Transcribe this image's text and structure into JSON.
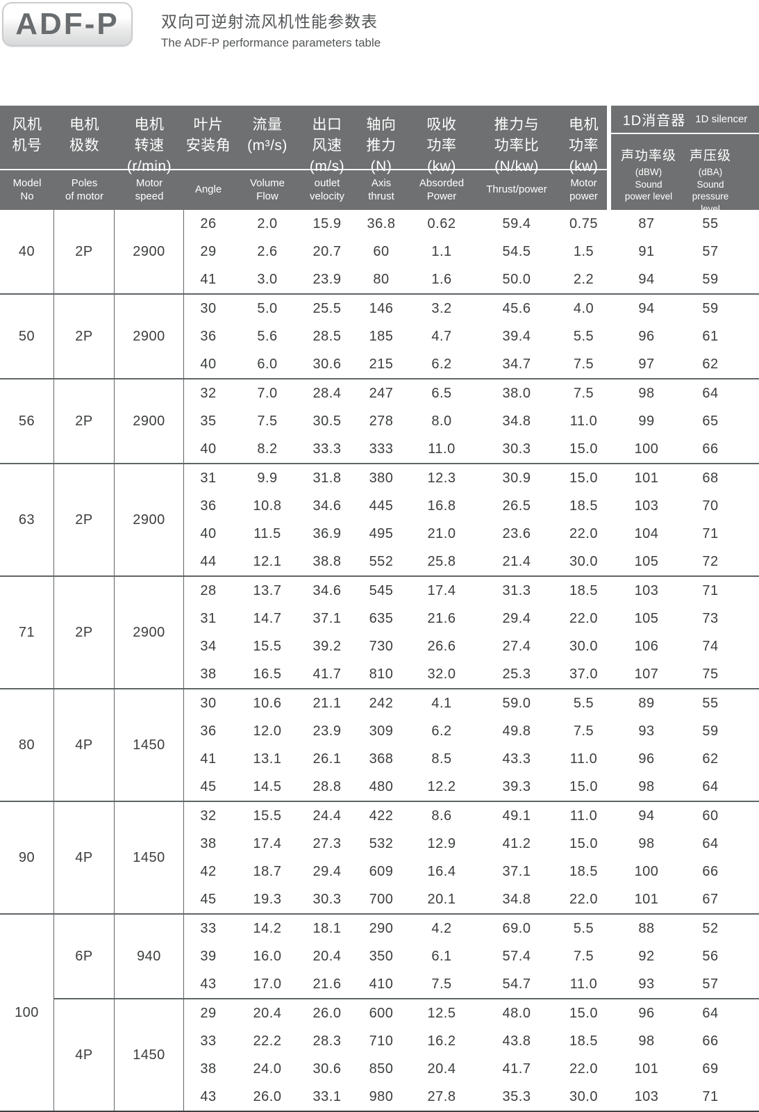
{
  "page": {
    "logo_text": "ADF-P",
    "title_zh": "双向可逆射流风机性能参数表",
    "title_en": "The ADF-P performance parameters table"
  },
  "table": {
    "header": {
      "columns": [
        {
          "zh": "风机\n机号",
          "en": "Model\nNo"
        },
        {
          "zh": "电机\n极数",
          "en": "Poles\nof motor"
        },
        {
          "zh": "电机\n转速\n(r/min)",
          "en": "Motor\nspeed"
        },
        {
          "zh": "叶片\n安装角",
          "en": "Angle"
        },
        {
          "zh": "流量\n(m³/s)",
          "en": "Volume\nFlow"
        },
        {
          "zh": "出口\n风速\n(m/s)",
          "en": "outlet\nvelocity"
        },
        {
          "zh": "轴向\n推力\n(N)",
          "en": "Axis\nthrust"
        },
        {
          "zh": "吸收\n功率\n(kw)",
          "en": "Absorded\nPower"
        },
        {
          "zh": "推力与\n功率比\n(N/kw)",
          "en": "Thrust/power"
        },
        {
          "zh": "电机\n功率\n(kw)",
          "en": "Motor\npower"
        }
      ],
      "silencer": {
        "title_zh": "1D消音器",
        "title_en": "1D silencer",
        "cols": [
          {
            "zh": "声功率级",
            "en": "(dBW)\nSound\npower level"
          },
          {
            "zh": "声压级",
            "en": "(dBA)\nSound\npressure level"
          }
        ]
      }
    },
    "colors": {
      "header_bg": "#6e7071",
      "header_text": "#ffffff",
      "body_text": "#3b3d3f",
      "grid_line": "#5f6467"
    },
    "groups": [
      {
        "model": "40",
        "subs": [
          {
            "poles": "2P",
            "speed": "2900",
            "rows": [
              [
                "26",
                "2.0",
                "15.9",
                "36.8",
                "0.62",
                "59.4",
                "0.75",
                "87",
                "55"
              ],
              [
                "29",
                "2.6",
                "20.7",
                "60",
                "1.1",
                "54.5",
                "1.5",
                "91",
                "57"
              ],
              [
                "41",
                "3.0",
                "23.9",
                "80",
                "1.6",
                "50.0",
                "2.2",
                "94",
                "59"
              ]
            ]
          }
        ]
      },
      {
        "model": "50",
        "subs": [
          {
            "poles": "2P",
            "speed": "2900",
            "rows": [
              [
                "30",
                "5.0",
                "25.5",
                "146",
                "3.2",
                "45.6",
                "4.0",
                "94",
                "59"
              ],
              [
                "36",
                "5.6",
                "28.5",
                "185",
                "4.7",
                "39.4",
                "5.5",
                "96",
                "61"
              ],
              [
                "40",
                "6.0",
                "30.6",
                "215",
                "6.2",
                "34.7",
                "7.5",
                "97",
                "62"
              ]
            ]
          }
        ]
      },
      {
        "model": "56",
        "subs": [
          {
            "poles": "2P",
            "speed": "2900",
            "rows": [
              [
                "32",
                "7.0",
                "28.4",
                "247",
                "6.5",
                "38.0",
                "7.5",
                "98",
                "64"
              ],
              [
                "35",
                "7.5",
                "30.5",
                "278",
                "8.0",
                "34.8",
                "11.0",
                "99",
                "65"
              ],
              [
                "40",
                "8.2",
                "33.3",
                "333",
                "11.0",
                "30.3",
                "15.0",
                "100",
                "66"
              ]
            ]
          }
        ]
      },
      {
        "model": "63",
        "subs": [
          {
            "poles": "2P",
            "speed": "2900",
            "rows": [
              [
                "31",
                "9.9",
                "31.8",
                "380",
                "12.3",
                "30.9",
                "15.0",
                "101",
                "68"
              ],
              [
                "36",
                "10.8",
                "34.6",
                "445",
                "16.8",
                "26.5",
                "18.5",
                "103",
                "70"
              ],
              [
                "40",
                "11.5",
                "36.9",
                "495",
                "21.0",
                "23.6",
                "22.0",
                "104",
                "71"
              ],
              [
                "44",
                "12.1",
                "38.8",
                "552",
                "25.8",
                "21.4",
                "30.0",
                "105",
                "72"
              ]
            ]
          }
        ]
      },
      {
        "model": "71",
        "subs": [
          {
            "poles": "2P",
            "speed": "2900",
            "rows": [
              [
                "28",
                "13.7",
                "34.6",
                "545",
                "17.4",
                "31.3",
                "18.5",
                "103",
                "71"
              ],
              [
                "31",
                "14.7",
                "37.1",
                "635",
                "21.6",
                "29.4",
                "22.0",
                "105",
                "73"
              ],
              [
                "34",
                "15.5",
                "39.2",
                "730",
                "26.6",
                "27.4",
                "30.0",
                "106",
                "74"
              ],
              [
                "38",
                "16.5",
                "41.7",
                "810",
                "32.0",
                "25.3",
                "37.0",
                "107",
                "75"
              ]
            ]
          }
        ]
      },
      {
        "model": "80",
        "subs": [
          {
            "poles": "4P",
            "speed": "1450",
            "rows": [
              [
                "30",
                "10.6",
                "21.1",
                "242",
                "4.1",
                "59.0",
                "5.5",
                "89",
                "55"
              ],
              [
                "36",
                "12.0",
                "23.9",
                "309",
                "6.2",
                "49.8",
                "7.5",
                "93",
                "59"
              ],
              [
                "41",
                "13.1",
                "26.1",
                "368",
                "8.5",
                "43.3",
                "11.0",
                "96",
                "62"
              ],
              [
                "45",
                "14.5",
                "28.8",
                "480",
                "12.2",
                "39.3",
                "15.0",
                "98",
                "64"
              ]
            ]
          }
        ]
      },
      {
        "model": "90",
        "subs": [
          {
            "poles": "4P",
            "speed": "1450",
            "rows": [
              [
                "32",
                "15.5",
                "24.4",
                "422",
                "8.6",
                "49.1",
                "11.0",
                "94",
                "60"
              ],
              [
                "38",
                "17.4",
                "27.3",
                "532",
                "12.9",
                "41.2",
                "15.0",
                "98",
                "64"
              ],
              [
                "42",
                "18.7",
                "29.4",
                "609",
                "16.4",
                "37.1",
                "18.5",
                "100",
                "66"
              ],
              [
                "45",
                "19.3",
                "30.3",
                "700",
                "20.1",
                "34.8",
                "22.0",
                "101",
                "67"
              ]
            ]
          }
        ]
      },
      {
        "model": "100",
        "subs": [
          {
            "poles": "6P",
            "speed": "940",
            "rows": [
              [
                "33",
                "14.2",
                "18.1",
                "290",
                "4.2",
                "69.0",
                "5.5",
                "88",
                "52"
              ],
              [
                "39",
                "16.0",
                "20.4",
                "350",
                "6.1",
                "57.4",
                "7.5",
                "92",
                "56"
              ],
              [
                "43",
                "17.0",
                "21.6",
                "410",
                "7.5",
                "54.7",
                "11.0",
                "93",
                "57"
              ]
            ]
          },
          {
            "poles": "4P",
            "speed": "1450",
            "rows": [
              [
                "29",
                "20.4",
                "26.0",
                "600",
                "12.5",
                "48.0",
                "15.0",
                "96",
                "64"
              ],
              [
                "33",
                "22.2",
                "28.3",
                "710",
                "16.2",
                "43.8",
                "18.5",
                "98",
                "66"
              ],
              [
                "38",
                "24.0",
                "30.6",
                "850",
                "20.4",
                "41.7",
                "22.0",
                "101",
                "69"
              ],
              [
                "43",
                "26.0",
                "33.1",
                "980",
                "27.8",
                "35.3",
                "30.0",
                "103",
                "71"
              ]
            ]
          }
        ]
      }
    ]
  }
}
